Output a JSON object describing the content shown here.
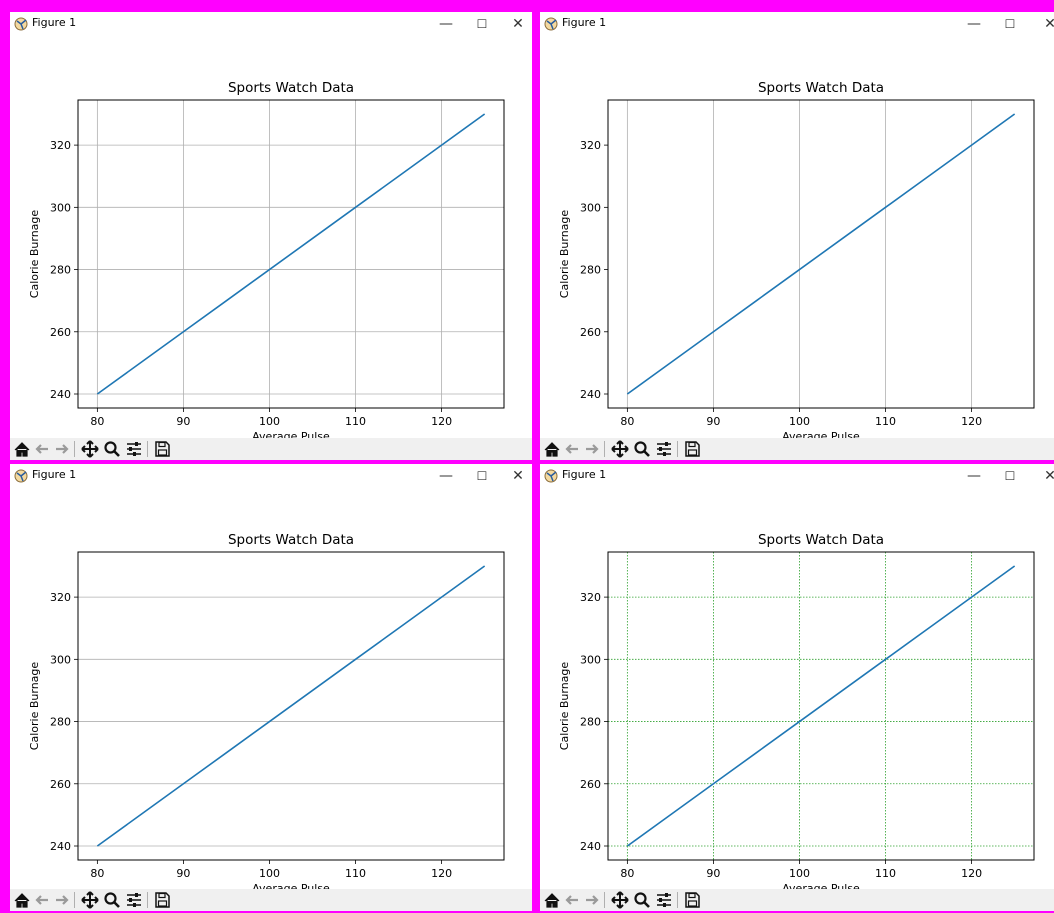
{
  "windows": [
    {
      "id": "top-left",
      "title": "Figure 1",
      "grid": "both",
      "grid_color": "#b0b0b0",
      "grid_style": "solid",
      "toolbar_icons": [
        "home-icon",
        "back-icon",
        "forward-icon",
        "pan-icon",
        "zoom-icon",
        "configure-icon",
        "save-icon"
      ]
    },
    {
      "id": "top-right",
      "title": "Figure 1",
      "grid": "x",
      "grid_color": "#b0b0b0",
      "grid_style": "solid",
      "toolbar_icons": [
        "home-icon",
        "back-icon",
        "forward-icon",
        "pan-icon",
        "zoom-icon",
        "configure-icon",
        "save-icon"
      ]
    },
    {
      "id": "bottom-left",
      "title": "Figure 1",
      "grid": "y",
      "grid_color": "#b0b0b0",
      "grid_style": "solid",
      "toolbar_icons": [
        "home-icon",
        "back-icon",
        "forward-icon",
        "pan-icon",
        "zoom-icon",
        "configure-icon",
        "save-icon"
      ]
    },
    {
      "id": "bottom-right",
      "title": "Figure 1",
      "grid": "both",
      "grid_color": "#2ca02c",
      "grid_style": "dotted",
      "toolbar_icons": [
        "home-icon",
        "back-icon",
        "forward-icon",
        "pan-icon",
        "zoom-icon",
        "configure-icon",
        "save-icon"
      ]
    }
  ],
  "window_controls": {
    "minimize": "—",
    "maximize": "☐",
    "close": "✕"
  },
  "colors": {
    "line": "#1f77b4",
    "frame_border": "#ff00ff"
  },
  "chart_data": [
    {
      "type": "line",
      "title": "Sports Watch Data",
      "xlabel": "Average Pulse",
      "ylabel": "Calorie Burnage",
      "x": [
        80,
        85,
        90,
        95,
        100,
        105,
        110,
        115,
        120,
        125
      ],
      "series": [
        {
          "values": [
            240,
            250,
            260,
            270,
            280,
            290,
            300,
            310,
            320,
            330
          ]
        }
      ],
      "xticks": [
        80,
        90,
        100,
        110,
        120
      ],
      "yticks": [
        240,
        260,
        280,
        300,
        320
      ],
      "xlim": [
        77.75,
        127.25
      ],
      "ylim": [
        235.5,
        334.5
      ],
      "grid": "both"
    },
    {
      "type": "line",
      "title": "Sports Watch Data",
      "xlabel": "Average Pulse",
      "ylabel": "Calorie Burnage",
      "x": [
        80,
        85,
        90,
        95,
        100,
        105,
        110,
        115,
        120,
        125
      ],
      "series": [
        {
          "values": [
            240,
            250,
            260,
            270,
            280,
            290,
            300,
            310,
            320,
            330
          ]
        }
      ],
      "xticks": [
        80,
        90,
        100,
        110,
        120
      ],
      "yticks": [
        240,
        260,
        280,
        300,
        320
      ],
      "xlim": [
        77.75,
        127.25
      ],
      "ylim": [
        235.5,
        334.5
      ],
      "grid": "x"
    },
    {
      "type": "line",
      "title": "Sports Watch Data",
      "xlabel": "Average Pulse",
      "ylabel": "Calorie Burnage",
      "x": [
        80,
        85,
        90,
        95,
        100,
        105,
        110,
        115,
        120,
        125
      ],
      "series": [
        {
          "values": [
            240,
            250,
            260,
            270,
            280,
            290,
            300,
            310,
            320,
            330
          ]
        }
      ],
      "xticks": [
        80,
        90,
        100,
        110,
        120
      ],
      "yticks": [
        240,
        260,
        280,
        300,
        320
      ],
      "xlim": [
        77.75,
        127.25
      ],
      "ylim": [
        235.5,
        334.5
      ],
      "grid": "y"
    },
    {
      "type": "line",
      "title": "Sports Watch Data",
      "xlabel": "Average Pulse",
      "ylabel": "Calorie Burnage",
      "x": [
        80,
        85,
        90,
        95,
        100,
        105,
        110,
        115,
        120,
        125
      ],
      "series": [
        {
          "values": [
            240,
            250,
            260,
            270,
            280,
            290,
            300,
            310,
            320,
            330
          ]
        }
      ],
      "xticks": [
        80,
        90,
        100,
        110,
        120
      ],
      "yticks": [
        240,
        260,
        280,
        300,
        320
      ],
      "xlim": [
        77.75,
        127.25
      ],
      "ylim": [
        235.5,
        334.5
      ],
      "grid": "both"
    }
  ]
}
